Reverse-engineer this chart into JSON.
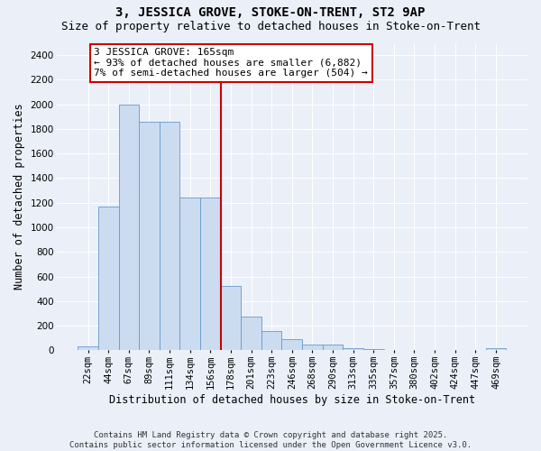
{
  "title": "3, JESSICA GROVE, STOKE-ON-TRENT, ST2 9AP",
  "subtitle": "Size of property relative to detached houses in Stoke-on-Trent",
  "xlabel": "Distribution of detached houses by size in Stoke-on-Trent",
  "ylabel": "Number of detached properties",
  "bin_labels": [
    "22sqm",
    "44sqm",
    "67sqm",
    "89sqm",
    "111sqm",
    "134sqm",
    "156sqm",
    "178sqm",
    "201sqm",
    "223sqm",
    "246sqm",
    "268sqm",
    "290sqm",
    "313sqm",
    "335sqm",
    "357sqm",
    "380sqm",
    "402sqm",
    "424sqm",
    "447sqm",
    "469sqm"
  ],
  "bar_values": [
    30,
    1170,
    2000,
    1860,
    1860,
    1240,
    1240,
    520,
    275,
    155,
    90,
    45,
    45,
    20,
    10,
    5,
    5,
    5,
    5,
    5,
    20
  ],
  "bar_color": "#ccdcf0",
  "bar_edge_color": "#6699cc",
  "vline_color": "#cc0000",
  "annotation_title": "3 JESSICA GROVE: 165sqm",
  "annotation_line1": "← 93% of detached houses are smaller (6,882)",
  "annotation_line2": "7% of semi-detached houses are larger (504) →",
  "annotation_box_facecolor": "#ffffff",
  "annotation_box_edgecolor": "#cc0000",
  "ylim": [
    0,
    2500
  ],
  "yticks": [
    0,
    200,
    400,
    600,
    800,
    1000,
    1200,
    1400,
    1600,
    1800,
    2000,
    2200,
    2400
  ],
  "bg_color": "#eaeff8",
  "grid_color": "#ffffff",
  "footer_line1": "Contains HM Land Registry data © Crown copyright and database right 2025.",
  "footer_line2": "Contains public sector information licensed under the Open Government Licence v3.0.",
  "title_fontsize": 10,
  "subtitle_fontsize": 9,
  "axis_label_fontsize": 8.5,
  "tick_fontsize": 7.5,
  "annotation_fontsize": 8,
  "footer_fontsize": 6.5
}
